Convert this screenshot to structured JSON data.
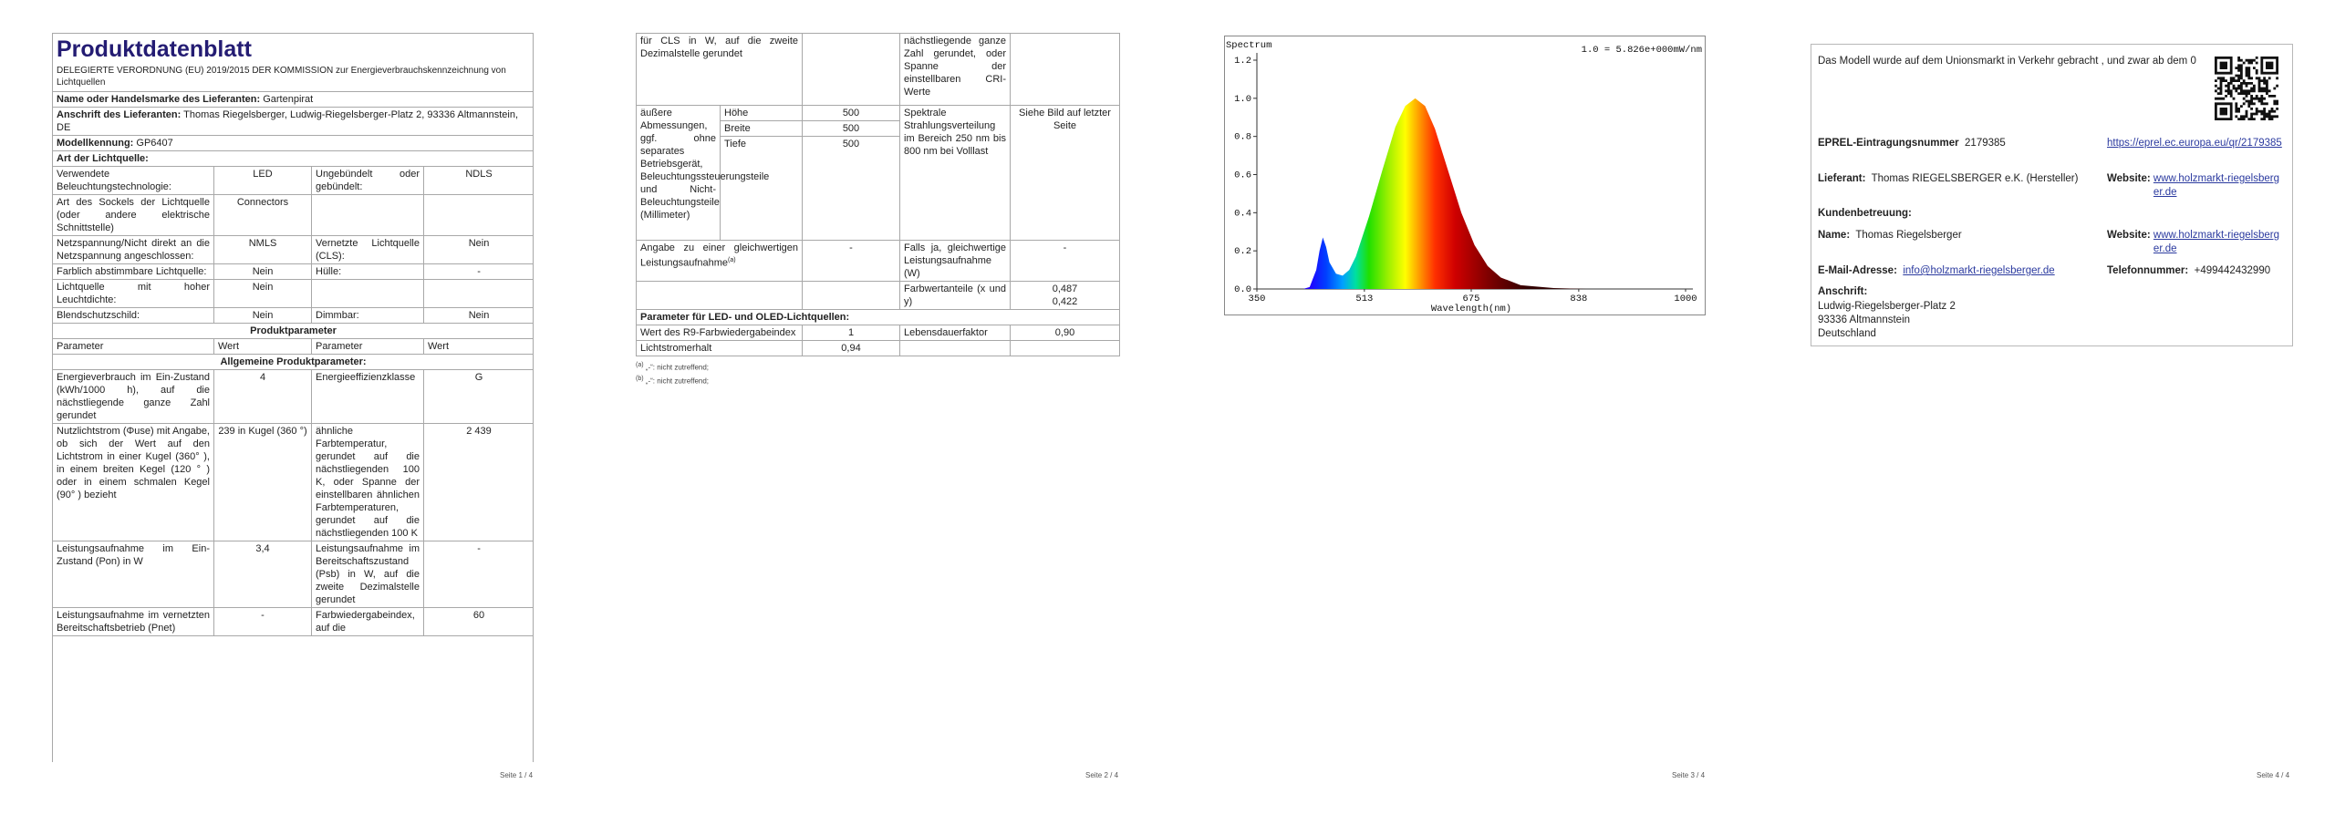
{
  "page1": {
    "title": "Produktdatenblatt",
    "regulation": "DELEGIERTE VERORDNUNG (EU) 2019/2015 DER KOMMISSION zur Energieverbrauchskennzeichnung von Lichtquellen",
    "supplier_name": {
      "label": "Name oder Handelsmarke des Lieferanten:",
      "value": "Gartenpirat"
    },
    "supplier_address": {
      "label": "Anschrift des Lieferanten:",
      "value": "Thomas Riegelsberger, Ludwig-Riegelsberger-Platz 2, 93336 Altmannstein, DE"
    },
    "model": {
      "label": "Modellkennung:",
      "value": "GP6407"
    },
    "light_source_heading": "Art der Lichtquelle:",
    "light_source_rows": [
      [
        "Verwendete Beleuchtungstechnologie:",
        "LED",
        "Ungebündelt oder gebündelt:",
        "NDLS"
      ],
      [
        "Art des Sockels der Lichtquelle (oder andere elektrische Schnittstelle)",
        "Connectors"
      ],
      [
        "Netzspannung/Nicht direkt an die Netzspannung angeschlossen:",
        "NMLS",
        "Vernetzte Lichtquelle (CLS):",
        "Nein"
      ],
      [
        "Farblich abstimmbare Lichtquelle:",
        "Nein",
        "Hülle:",
        "-"
      ],
      [
        "Lichtquelle mit hoher Leuchtdichte:",
        "Nein"
      ],
      [
        "Blendschutzschild:",
        "Nein",
        "Dimmbar:",
        "Nein"
      ]
    ],
    "product_parameters_heading": "Produktparameter",
    "column_headers": [
      "Parameter",
      "Wert",
      "Parameter",
      "Wert"
    ],
    "general_heading": "Allgemeine Produktparameter:",
    "general_rows": [
      [
        "Energieverbrauch im Ein-Zustand (kWh/1000 h), auf die nächstliegende ganze Zahl gerundet",
        "4",
        "Energieeffizienzklasse",
        "G"
      ],
      [
        "Nutzlichtstrom (Φuse) mit Angabe, ob sich der Wert auf den Lichtstrom in einer Kugel (360° ), in einem breiten Kegel (120 ° ) oder in einem schmalen Kegel (90° ) bezieht",
        "239 in Kugel (360 °)",
        "ähnliche Farbtemperatur, gerundet auf die nächstliegenden 100 K, oder Spanne der einstellbaren ähnlichen Farbtemperaturen, gerundet auf die nächstliegenden 100 K",
        "2 439"
      ],
      [
        "Leistungsaufnahme im Ein-Zustand (Pon) in W",
        "3,4",
        "Leistungsaufnahme im Bereitschaftszustand (Psb) in W, auf die zweite Dezimalstelle gerundet",
        "-"
      ],
      [
        "Leistungsaufnahme im vernetzten Bereitschaftsbetrieb (Pnet)",
        "-",
        "Farbwiedergabeindex, auf die",
        "60"
      ]
    ],
    "footer": "Seite 1 / 4"
  },
  "page2": {
    "continued_row": {
      "parameter_1": "für CLS in W, auf die zweite Dezimalstelle gerundet",
      "parameter_2": "nächstliegende ganze Zahl gerundet, oder Spanne der einstellbaren CRI-Werte"
    },
    "dimensions": {
      "label": "äußere Abmessungen, ggf. ohne separates Betriebsgerät, Beleuchtungssteuerungsteile und Nicht-Beleuchtungsteile (Millimeter)",
      "items": [
        {
          "name": "Höhe",
          "value": "500"
        },
        {
          "name": "Breite",
          "value": "500"
        },
        {
          "name": "Tiefe",
          "value": "500"
        }
      ],
      "parameter_2": "Spektrale Strahlungsverteilung im Bereich 250 nm bis 800 nm bei Volllast",
      "value_2": "Siehe Bild auf letzter Seite"
    },
    "equivalent_row": {
      "parameter_1": "Angabe zu einer gleichwertigen Leistungsaufnahme",
      "note": "(a)",
      "value_1": "-",
      "parameter_2": "Falls ja, gleichwertige Leistungsaufnahme (W)",
      "value_2": "-"
    },
    "chromaticity": {
      "label": "Farbwertanteile (x und y)",
      "x": "0,487",
      "y": "0,422"
    },
    "led_heading": "Parameter für LED- und OLED-Lichtquellen:",
    "led_rows": [
      [
        "Wert des R9-Farbwiedergabeindex",
        "1",
        "Lebensdauerfaktor",
        "0,90"
      ],
      [
        "Lichtstromerhalt",
        "0,94"
      ]
    ],
    "footnotes": [
      {
        "mark": "(a)",
        "text": "„-“: nicht zutreffend;"
      },
      {
        "mark": "(b)",
        "text": "„-“: nicht zutreffend;"
      }
    ],
    "footer": "Seite 2 / 4"
  },
  "chart_data": {
    "type": "area",
    "title": "Spectrum",
    "annotation": "1.0 = 5.826e+000mW/nm",
    "x_label": "Wavelength(nm)",
    "x": [
      350,
      420,
      430,
      440,
      445,
      450,
      455,
      460,
      470,
      480,
      490,
      500,
      520,
      540,
      560,
      575,
      590,
      605,
      620,
      640,
      660,
      680,
      700,
      720,
      750,
      800,
      850,
      1000
    ],
    "values": [
      0,
      0,
      0.01,
      0.1,
      0.2,
      0.27,
      0.22,
      0.14,
      0.08,
      0.07,
      0.1,
      0.17,
      0.38,
      0.62,
      0.85,
      0.96,
      1.0,
      0.96,
      0.84,
      0.62,
      0.4,
      0.23,
      0.12,
      0.06,
      0.02,
      0.005,
      0,
      0
    ],
    "xlim": [
      350,
      1000
    ],
    "ylim": [
      0,
      1.2
    ],
    "xticks": [
      350,
      513,
      675,
      838,
      1000
    ],
    "yticks": [
      {
        "value": 0,
        "label": "0.0"
      },
      {
        "value": 0.2,
        "label": "0.2"
      },
      {
        "value": 0.4,
        "label": "0.4"
      },
      {
        "value": 0.6,
        "label": "0.6"
      },
      {
        "value": 0.8,
        "label": "0.8"
      },
      {
        "value": 1.0,
        "label": "1.0"
      },
      {
        "value": 1.2,
        "label": "1.2"
      }
    ],
    "footer": "Seite 3 / 4"
  },
  "page4": {
    "market_text": "Das Modell wurde auf dem Unionsmarkt in Verkehr gebracht , und zwar ab dem 0",
    "eprel": {
      "label": "EPREL-Eintragungsnummer",
      "value": "2179385",
      "link": "https://eprel.ec.europa.eu/qr/2179385"
    },
    "supplier": {
      "label": "Lieferant:",
      "value": "Thomas RIEGELSBERGER e.K. (Hersteller)",
      "website_label": "Website:",
      "website": "www.holzmarkt-riegelsberger.de"
    },
    "customer_service": {
      "heading": "Kundenbetreuung:",
      "name_label": "Name:",
      "name": "Thomas Riegelsberger",
      "website_label": "Website:",
      "website": "www.holzmarkt-riegelsberger.de",
      "email_label": "E-Mail-Adresse:",
      "email": "info@holzmarkt-riegelsberger.de",
      "phone_label": "Telefonnummer:",
      "phone": "+499442432990",
      "address_label": "Anschrift:",
      "address": [
        "Ludwig-Riegelsberger-Platz 2",
        "93336 Altmannstein",
        "Deutschland"
      ]
    },
    "footer": "Seite 4 / 4"
  }
}
